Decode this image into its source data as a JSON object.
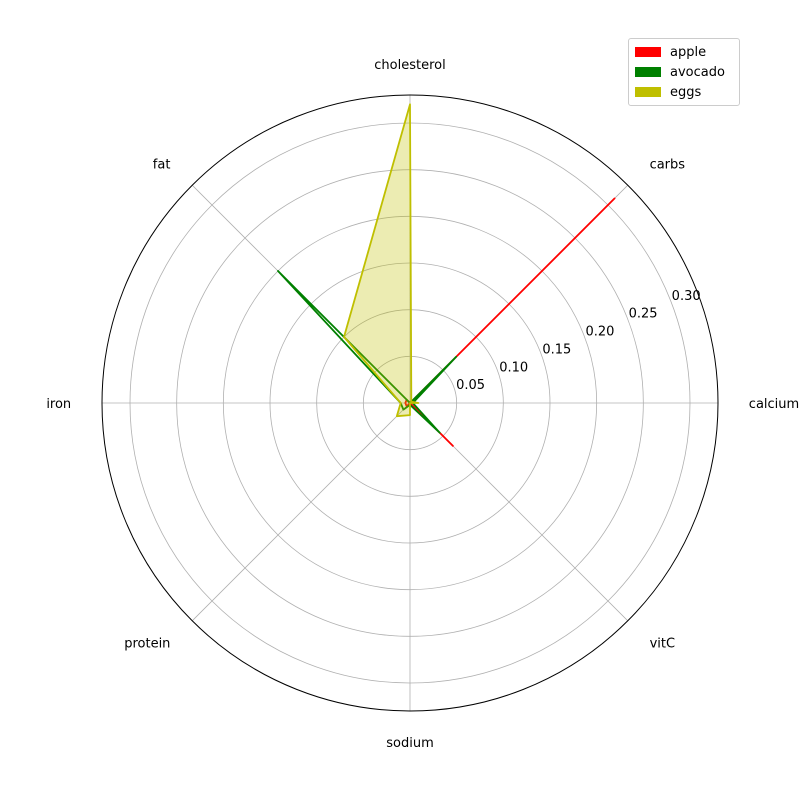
{
  "chart_data": {
    "type": "radar",
    "axes": [
      "calcium",
      "carbs",
      "cholesterol",
      "fat",
      "iron",
      "protein",
      "sodium",
      "vitC"
    ],
    "rlim": [
      0,
      0.33
    ],
    "rticks": [
      0.05,
      0.1,
      0.15,
      0.2,
      0.25,
      0.3
    ],
    "rtick_labels": [
      "0.05",
      "0.10",
      "0.15",
      "0.20",
      "0.25",
      "0.30"
    ],
    "grid": true,
    "legend_position": "top-right",
    "series": [
      {
        "name": "apple",
        "color": "#ff0000",
        "fill": false,
        "values": [
          0.0,
          0.31,
          0.0,
          0.005,
          0.005,
          0.005,
          0.0,
          0.065
        ]
      },
      {
        "name": "avocado",
        "color": "#008000",
        "fill": false,
        "values": [
          0.003,
          0.07,
          0.0,
          0.2,
          0.01,
          0.01,
          0.002,
          0.045
        ]
      },
      {
        "name": "eggs",
        "color": "#bfbf00",
        "fill": true,
        "values": [
          0.009,
          0.002,
          0.32,
          0.1,
          0.01,
          0.02,
          0.013,
          0.0
        ]
      }
    ]
  },
  "legend": {
    "items": [
      {
        "label": "apple",
        "color": "#ff0000"
      },
      {
        "label": "avocado",
        "color": "#008000"
      },
      {
        "label": "eggs",
        "color": "#bfbf00"
      }
    ]
  }
}
